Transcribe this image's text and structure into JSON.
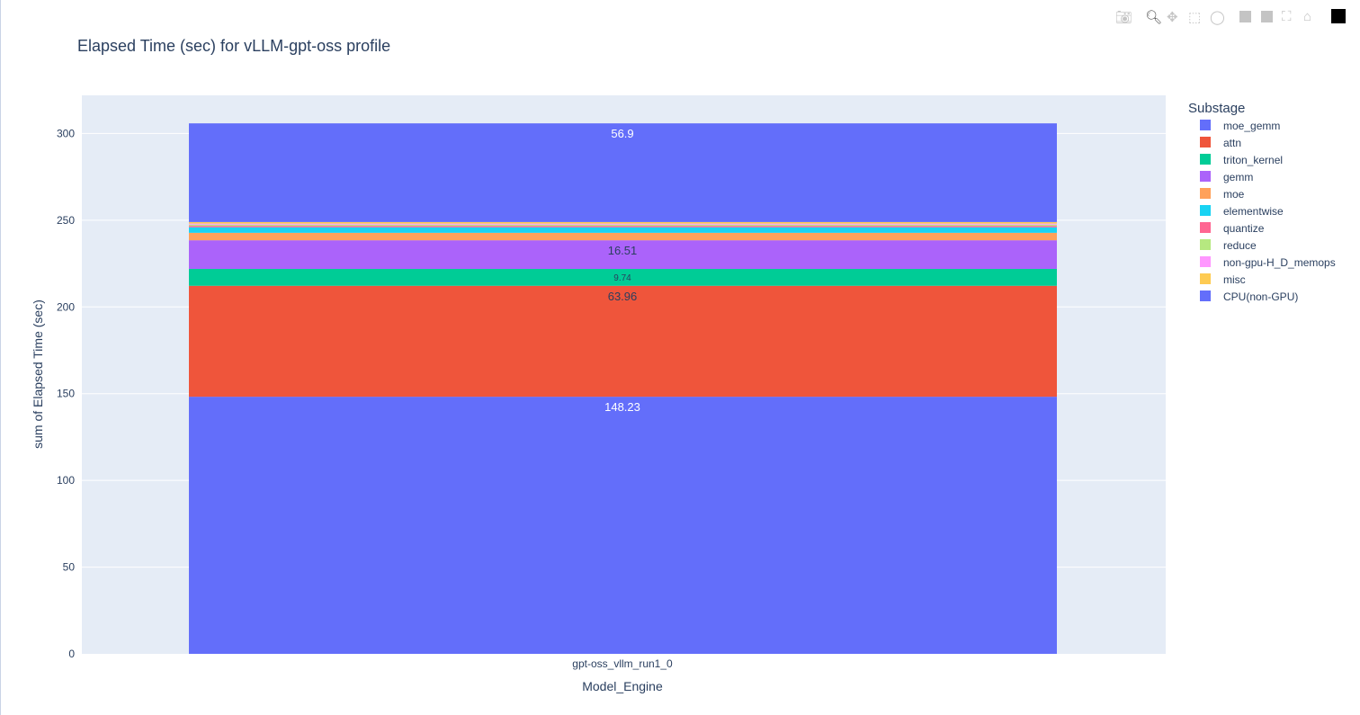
{
  "chart_data": {
    "type": "bar",
    "stacked": true,
    "title": "Elapsed Time (sec) for vLLM-gpt-oss profile",
    "xlabel": "Model_Engine",
    "ylabel": "sum of Elapsed Time (sec)",
    "categories": [
      "gpt-oss_vllm_run1_0"
    ],
    "ylim": [
      0,
      322
    ],
    "yticks": [
      0,
      50,
      100,
      150,
      200,
      250,
      300
    ],
    "grid": true,
    "legend_title": "Substage",
    "legend_position": "right",
    "series": [
      {
        "name": "moe_gemm",
        "values": [
          148.23
        ],
        "label": "148.23",
        "color": "#636efa"
      },
      {
        "name": "attn",
        "values": [
          63.96
        ],
        "label": "63.96",
        "color": "#ef553b"
      },
      {
        "name": "triton_kernel",
        "values": [
          9.74
        ],
        "label": "9.74",
        "color": "#00cc96"
      },
      {
        "name": "gemm",
        "values": [
          16.51
        ],
        "label": "16.51",
        "color": "#ab63fa"
      },
      {
        "name": "moe",
        "values": [
          4.3
        ],
        "color": "#ffa15a"
      },
      {
        "name": "elementwise",
        "values": [
          3.2
        ],
        "color": "#19d3f3"
      },
      {
        "name": "quantize",
        "values": [
          0.8
        ],
        "color": "#ff6692"
      },
      {
        "name": "reduce",
        "values": [
          0.7
        ],
        "color": "#b6e880"
      },
      {
        "name": "non-gpu-H_D_memops",
        "values": [
          0.6
        ],
        "color": "#ff97ff"
      },
      {
        "name": "misc",
        "values": [
          0.9
        ],
        "color": "#fecb52"
      },
      {
        "name": "CPU(non-GPU)",
        "values": [
          56.9
        ],
        "label": "56.9",
        "color": "#636efa"
      }
    ]
  },
  "toolbar": {
    "icons": [
      "camera-icon",
      "zoom-icon",
      "pan-icon",
      "box-select-icon",
      "lasso-icon",
      "zoom-in-icon",
      "zoom-out-icon",
      "autoscale-icon",
      "home-icon",
      "plotly-logo-icon"
    ]
  }
}
